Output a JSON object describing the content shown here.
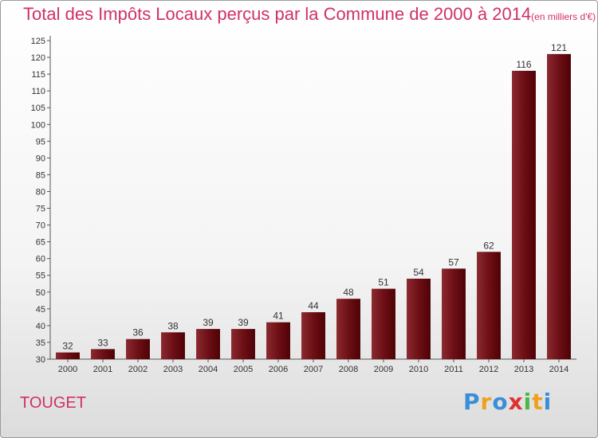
{
  "title": "Total des Impôts Locaux perçus par la Commune de 2000 à 2014",
  "unit": "(en milliers d'€)",
  "commune": "TOUGET",
  "logo_letters": [
    "P",
    "r",
    "o",
    "x",
    "i",
    "t",
    "i"
  ],
  "chart_data": {
    "type": "bar",
    "title": "Total des Impôts Locaux perçus par la Commune de 2000 à 2014",
    "categories": [
      "2000",
      "2001",
      "2002",
      "2003",
      "2004",
      "2005",
      "2006",
      "2007",
      "2008",
      "2009",
      "2010",
      "2011",
      "2012",
      "2013",
      "2014"
    ],
    "values": [
      32,
      33,
      36,
      38,
      39,
      39,
      41,
      44,
      48,
      51,
      54,
      57,
      62,
      116,
      121
    ],
    "ylim": [
      30,
      125
    ],
    "yticks": [
      30,
      35,
      40,
      45,
      50,
      55,
      60,
      65,
      70,
      75,
      80,
      85,
      90,
      95,
      100,
      105,
      110,
      115,
      120,
      125
    ],
    "grid": false,
    "bar_color": "#6e0f16"
  }
}
